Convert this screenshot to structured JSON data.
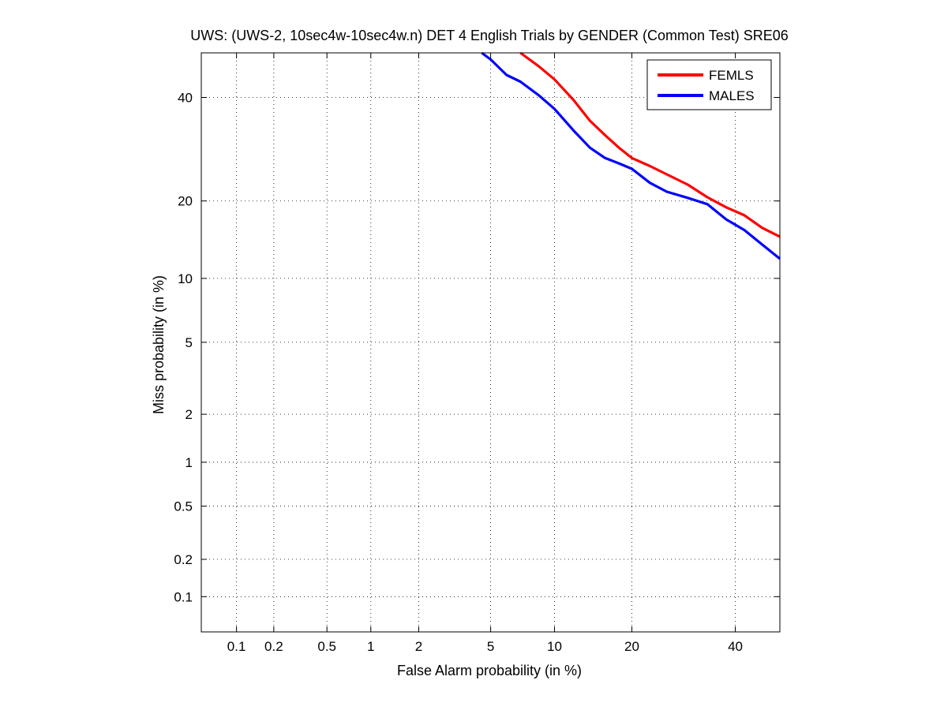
{
  "chart_data": {
    "type": "line",
    "scale": "normal-deviate (probit) on both axes",
    "title": "UWS: (UWS-2, 10sec4w-10sec4w.n) DET 4 English Trials by GENDER (Common Test) SRE06",
    "xlabel": "False Alarm probability (in %)",
    "ylabel": "Miss probability (in %)",
    "xlim": [
      0.05,
      50
    ],
    "ylim": [
      0.05,
      50
    ],
    "x_ticks": [
      {
        "value": 0.1,
        "label": "0.1"
      },
      {
        "value": 0.2,
        "label": "0.2"
      },
      {
        "value": 0.5,
        "label": "0.5"
      },
      {
        "value": 1,
        "label": "1"
      },
      {
        "value": 2,
        "label": "2"
      },
      {
        "value": 5,
        "label": "5"
      },
      {
        "value": 10,
        "label": "10"
      },
      {
        "value": 20,
        "label": "20"
      },
      {
        "value": 40,
        "label": "40"
      }
    ],
    "y_ticks": [
      {
        "value": 0.1,
        "label": "0.1"
      },
      {
        "value": 0.2,
        "label": "0.2"
      },
      {
        "value": 0.5,
        "label": "0.5"
      },
      {
        "value": 1,
        "label": "1"
      },
      {
        "value": 2,
        "label": "2"
      },
      {
        "value": 5,
        "label": "5"
      },
      {
        "value": 10,
        "label": "10"
      },
      {
        "value": 20,
        "label": "20"
      },
      {
        "value": 40,
        "label": "40"
      }
    ],
    "grid": true,
    "legend_position": "top-right",
    "series": [
      {
        "name": "FEMLS",
        "color": "#ff0000",
        "x": [
          7.0,
          8.5,
          10,
          12,
          14,
          16,
          18,
          20,
          23,
          26,
          30,
          34,
          38,
          42,
          46,
          50
        ],
        "y": [
          50,
          47,
          44,
          39.5,
          35,
          32,
          29.5,
          27.5,
          26,
          24.5,
          22.7,
          20.6,
          19.0,
          17.8,
          16.0,
          14.8
        ]
      },
      {
        "name": "MALES",
        "color": "#0000ff",
        "x": [
          4.5,
          5.0,
          6.0,
          7.0,
          8.5,
          10,
          12,
          14,
          16,
          18,
          20,
          23,
          26,
          30,
          34,
          38,
          42,
          46,
          50
        ],
        "y": [
          50,
          48.5,
          45,
          43.5,
          40.5,
          37.5,
          33,
          29.5,
          27.5,
          26.5,
          25.5,
          23,
          21.5,
          20.5,
          19.5,
          17.2,
          15.7,
          13.8,
          12.1
        ]
      }
    ]
  }
}
